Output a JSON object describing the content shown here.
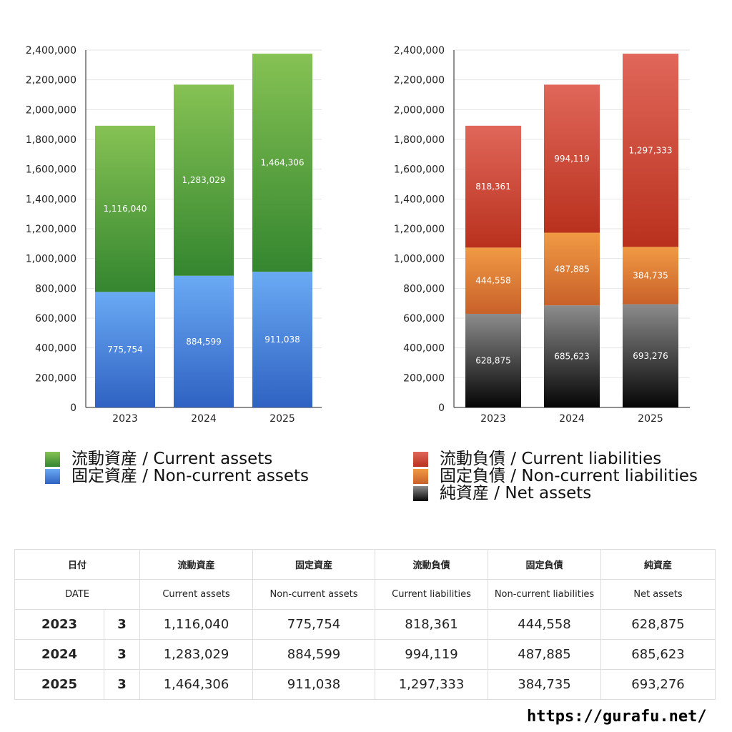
{
  "chart_data": [
    {
      "type": "bar",
      "stacked": true,
      "categories": [
        "2023",
        "2024",
        "2025"
      ],
      "ylim": [
        0,
        2400000
      ],
      "yticks": [
        0,
        200000,
        400000,
        600000,
        800000,
        1000000,
        1200000,
        1400000,
        1600000,
        1800000,
        2000000,
        2200000,
        2400000
      ],
      "ytick_labels": [
        "0",
        "200,000",
        "400,000",
        "600,000",
        "800,000",
        "1,000,000",
        "1,200,000",
        "1,400,000",
        "1,600,000",
        "1,800,000",
        "2,000,000",
        "2,200,000",
        "2,400,000"
      ],
      "grid": true,
      "legend_placement": "bottom",
      "series": [
        {
          "name": "固定資産 / Non-current assets",
          "values": [
            775754,
            884599,
            911038
          ],
          "labels": [
            "775,754",
            "884,599",
            "911,038"
          ],
          "color_top": "#6aaaf4",
          "color_bottom": "#2f62c2"
        },
        {
          "name": "流動資産 / Current assets",
          "values": [
            1116040,
            1283029,
            1464306
          ],
          "labels": [
            "1,116,040",
            "1,283,029",
            "1,464,306"
          ],
          "color_top": "#86c254",
          "color_bottom": "#34862f"
        }
      ]
    },
    {
      "type": "bar",
      "stacked": true,
      "categories": [
        "2023",
        "2024",
        "2025"
      ],
      "ylim": [
        0,
        2400000
      ],
      "yticks": [
        0,
        200000,
        400000,
        600000,
        800000,
        1000000,
        1200000,
        1400000,
        1600000,
        1800000,
        2000000,
        2200000,
        2400000
      ],
      "ytick_labels": [
        "0",
        "200,000",
        "400,000",
        "600,000",
        "800,000",
        "1,000,000",
        "1,200,000",
        "1,400,000",
        "1,600,000",
        "1,800,000",
        "2,000,000",
        "2,200,000",
        "2,400,000"
      ],
      "grid": true,
      "legend_placement": "bottom",
      "series": [
        {
          "name": "純資産 / Net assets",
          "values": [
            628875,
            685623,
            693276
          ],
          "labels": [
            "628,875",
            "685,623",
            "693,276"
          ],
          "color_top": "#8c8c8c",
          "color_bottom": "#050505"
        },
        {
          "name": "固定負債 / Non-current liabilities",
          "values": [
            444558,
            487885,
            384735
          ],
          "labels": [
            "444,558",
            "487,885",
            "384,735"
          ],
          "color_top": "#f09a44",
          "color_bottom": "#c9612a"
        },
        {
          "name": "流動負債 / Current liabilities",
          "values": [
            818361,
            994119,
            1297333
          ],
          "labels": [
            "818,361",
            "994,119",
            "1,297,333"
          ],
          "color_top": "#e0675a",
          "color_bottom": "#b9311d"
        }
      ]
    }
  ],
  "legends": {
    "left": [
      {
        "label": "流動資産 / Current assets",
        "color_top": "#86c254",
        "color_bottom": "#34862f"
      },
      {
        "label": "固定資産 / Non-current assets",
        "color_top": "#6aaaf4",
        "color_bottom": "#2f62c2"
      }
    ],
    "right": [
      {
        "label": "流動負債 / Current liabilities",
        "color_top": "#e0675a",
        "color_bottom": "#b9311d"
      },
      {
        "label": "固定負債 / Non-current liabilities",
        "color_top": "#f09a44",
        "color_bottom": "#c9612a"
      },
      {
        "label": "純資産 / Net assets",
        "color_top": "#8c8c8c",
        "color_bottom": "#050505"
      }
    ]
  },
  "table": {
    "header_jp": {
      "date": "日付",
      "current_assets": "流動資産",
      "noncurrent_assets": "固定資産",
      "current_liabilities": "流動負債",
      "noncurrent_liabilities": "固定負債",
      "net_assets": "純資産"
    },
    "header_en": {
      "date": "DATE",
      "current_assets": "Current assets",
      "noncurrent_assets": "Non-current assets",
      "current_liabilities": "Current liabilities",
      "noncurrent_liabilities": "Non-current liabilities",
      "net_assets": "Net assets"
    },
    "rows": [
      {
        "year": "2023",
        "month": "3",
        "current_assets": "1,116,040",
        "noncurrent_assets": "775,754",
        "current_liabilities": "818,361",
        "noncurrent_liabilities": "444,558",
        "net_assets": "628,875"
      },
      {
        "year": "2024",
        "month": "3",
        "current_assets": "1,283,029",
        "noncurrent_assets": "884,599",
        "current_liabilities": "994,119",
        "noncurrent_liabilities": "487,885",
        "net_assets": "685,623"
      },
      {
        "year": "2025",
        "month": "3",
        "current_assets": "1,464,306",
        "noncurrent_assets": "911,038",
        "current_liabilities": "1,297,333",
        "noncurrent_liabilities": "384,735",
        "net_assets": "693,276"
      }
    ]
  },
  "footer": {
    "url": "https://gurafu.net/"
  }
}
